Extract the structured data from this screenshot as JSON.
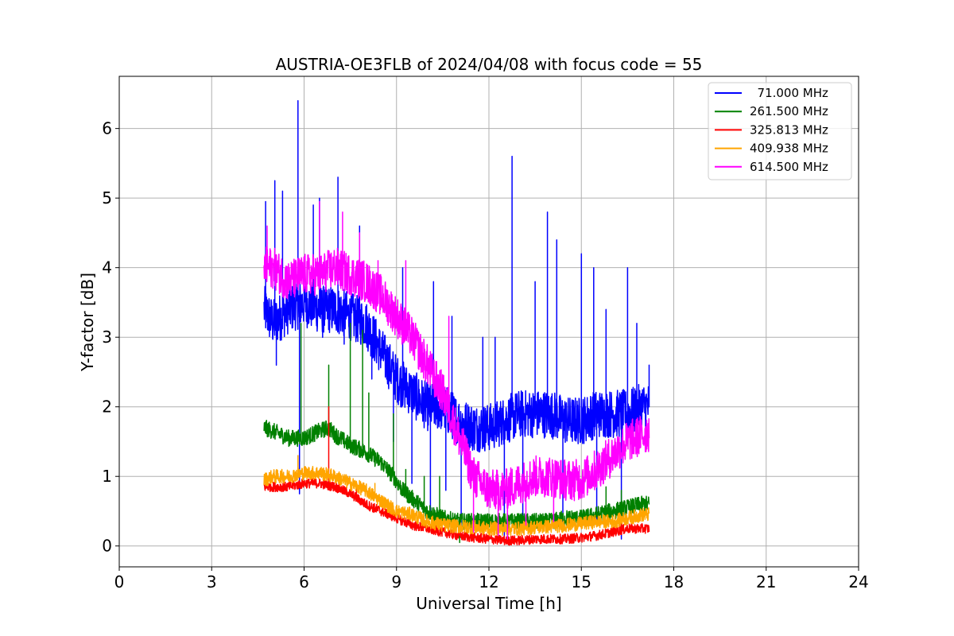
{
  "chart_data": {
    "type": "line",
    "title": "AUSTRIA-OE3FLB of 2024/04/08 with focus code = 55",
    "xlabel": "Universal Time [h]",
    "ylabel": "Y-factor [dB]",
    "xlim": [
      0,
      24
    ],
    "ylim": [
      -0.3,
      6.75
    ],
    "xticks": [
      0,
      3,
      6,
      9,
      12,
      15,
      18,
      21,
      24
    ],
    "xtick_labels": [
      "0",
      "3",
      "6",
      "9",
      "12",
      "15",
      "18",
      "21",
      "24"
    ],
    "yticks": [
      0,
      1,
      2,
      3,
      4,
      5,
      6
    ],
    "ytick_labels": [
      "0",
      "1",
      "2",
      "3",
      "4",
      "5",
      "6"
    ],
    "grid": true,
    "legend_position": "top-right",
    "series": [
      {
        "name": "  71.000 MHz",
        "color": "#0000ff",
        "x": [
          4.7,
          5.0,
          5.5,
          6.0,
          6.5,
          7.0,
          7.5,
          8.0,
          8.5,
          9.0,
          9.5,
          10.0,
          10.5,
          11.0,
          11.5,
          12.0,
          12.5,
          13.0,
          13.5,
          14.0,
          14.5,
          15.0,
          15.5,
          16.0,
          16.5,
          17.0,
          17.2
        ],
        "y": [
          3.4,
          3.2,
          3.4,
          3.5,
          3.4,
          3.4,
          3.3,
          3.2,
          2.8,
          2.4,
          2.2,
          2.0,
          2.0,
          1.8,
          1.7,
          1.7,
          1.8,
          1.9,
          1.9,
          1.9,
          1.8,
          1.8,
          1.9,
          1.9,
          1.9,
          2.0,
          2.0
        ],
        "spread": 0.35,
        "spikes": [
          [
            4.75,
            4.95
          ],
          [
            5.05,
            5.25
          ],
          [
            5.3,
            5.1
          ],
          [
            5.8,
            6.4
          ],
          [
            6.3,
            4.9
          ],
          [
            6.5,
            5.0
          ],
          [
            7.1,
            5.3
          ],
          [
            7.8,
            4.6
          ],
          [
            9.2,
            4.0
          ],
          [
            10.2,
            3.8
          ],
          [
            10.8,
            3.3
          ],
          [
            11.8,
            3.0
          ],
          [
            12.2,
            3.0
          ],
          [
            12.75,
            5.6
          ],
          [
            13.5,
            3.8
          ],
          [
            13.9,
            4.8
          ],
          [
            14.2,
            4.4
          ],
          [
            15.0,
            4.2
          ],
          [
            15.4,
            4.0
          ],
          [
            15.8,
            3.4
          ],
          [
            16.5,
            4.0
          ],
          [
            16.8,
            3.2
          ],
          [
            17.2,
            2.6
          ]
        ],
        "dips": [
          [
            5.1,
            2.6
          ],
          [
            5.85,
            0.75
          ],
          [
            6.6,
            3.0
          ],
          [
            7.3,
            2.9
          ],
          [
            8.2,
            2.4
          ],
          [
            8.9,
            1.5
          ],
          [
            9.5,
            0.9
          ],
          [
            10.1,
            0.4
          ],
          [
            10.6,
            0.8
          ],
          [
            11.1,
            0.3
          ],
          [
            12.5,
            0.05
          ],
          [
            13.1,
            0.2
          ],
          [
            14.4,
            0.3
          ],
          [
            15.5,
            0.3
          ],
          [
            16.3,
            0.1
          ]
        ]
      },
      {
        "name": "261.500 MHz",
        "color": "#008000",
        "x": [
          4.7,
          5.0,
          5.5,
          6.0,
          6.5,
          6.8,
          7.0,
          7.5,
          8.0,
          8.5,
          8.9,
          9.2,
          9.6,
          10.0,
          10.5,
          11.0,
          11.5,
          12.0,
          12.5,
          13.0,
          13.5,
          14.0,
          14.5,
          15.0,
          15.5,
          16.0,
          16.5,
          17.0,
          17.2
        ],
        "y": [
          1.7,
          1.65,
          1.55,
          1.55,
          1.65,
          1.7,
          1.6,
          1.45,
          1.35,
          1.2,
          1.0,
          0.8,
          0.65,
          0.5,
          0.4,
          0.35,
          0.35,
          0.35,
          0.35,
          0.35,
          0.35,
          0.35,
          0.4,
          0.4,
          0.45,
          0.5,
          0.55,
          0.6,
          0.6
        ],
        "spread": 0.12,
        "spikes": [
          [
            5.9,
            3.2
          ],
          [
            6.8,
            2.6
          ],
          [
            7.5,
            3.2
          ],
          [
            7.9,
            3.1
          ],
          [
            8.1,
            2.2
          ],
          [
            8.9,
            1.9
          ],
          [
            9.3,
            1.1
          ],
          [
            9.9,
            1.0
          ],
          [
            10.4,
            1.0
          ],
          [
            15.8,
            0.85
          ],
          [
            16.3,
            0.8
          ]
        ],
        "dips": [
          [
            11.05,
            0.05
          ]
        ]
      },
      {
        "name": "325.813 MHz",
        "color": "#ff0000",
        "x": [
          4.7,
          5.0,
          5.5,
          6.0,
          6.5,
          7.0,
          7.5,
          8.0,
          8.5,
          9.0,
          9.5,
          10.0,
          10.5,
          11.0,
          11.5,
          12.0,
          12.5,
          13.0,
          13.5,
          14.0,
          14.5,
          15.0,
          15.5,
          16.0,
          16.5,
          17.0,
          17.2
        ],
        "y": [
          0.85,
          0.85,
          0.85,
          0.9,
          0.9,
          0.85,
          0.75,
          0.6,
          0.5,
          0.4,
          0.3,
          0.25,
          0.2,
          0.15,
          0.12,
          0.1,
          0.08,
          0.08,
          0.1,
          0.1,
          0.1,
          0.12,
          0.15,
          0.2,
          0.25,
          0.25,
          0.25
        ],
        "spread": 0.07,
        "spikes": [
          [
            6.8,
            2.0
          ],
          [
            7.7,
            0.9
          ],
          [
            16.3,
            0.4
          ]
        ],
        "dips": []
      },
      {
        "name": "409.938 MHz",
        "color": "#ffa500",
        "x": [
          4.7,
          5.0,
          5.5,
          6.0,
          6.5,
          7.0,
          7.5,
          8.0,
          8.5,
          9.0,
          9.5,
          10.0,
          10.5,
          11.0,
          11.5,
          12.0,
          12.5,
          13.0,
          13.5,
          14.0,
          14.5,
          15.0,
          15.5,
          16.0,
          16.5,
          17.0,
          17.2
        ],
        "y": [
          0.95,
          1.0,
          1.0,
          1.05,
          1.05,
          1.0,
          0.9,
          0.8,
          0.65,
          0.5,
          0.45,
          0.35,
          0.3,
          0.28,
          0.27,
          0.25,
          0.25,
          0.25,
          0.27,
          0.28,
          0.3,
          0.32,
          0.35,
          0.35,
          0.4,
          0.45,
          0.45
        ],
        "spread": 0.1,
        "spikes": [
          [
            5.8,
            1.3
          ],
          [
            8.3,
            0.9
          ]
        ],
        "dips": []
      },
      {
        "name": "614.500 MHz",
        "color": "#ff00ff",
        "x": [
          4.7,
          5.0,
          5.5,
          6.0,
          6.5,
          7.0,
          7.5,
          8.0,
          8.5,
          9.0,
          9.5,
          10.0,
          10.5,
          11.0,
          11.5,
          12.0,
          12.5,
          13.0,
          13.5,
          14.0,
          14.5,
          15.0,
          15.5,
          16.0,
          16.5,
          17.0,
          17.2
        ],
        "y": [
          4.0,
          4.0,
          3.8,
          3.9,
          3.9,
          4.0,
          3.9,
          3.8,
          3.6,
          3.3,
          3.0,
          2.6,
          2.2,
          1.6,
          1.0,
          0.8,
          0.8,
          0.9,
          1.0,
          1.0,
          0.95,
          0.95,
          1.1,
          1.3,
          1.5,
          1.6,
          1.65
        ],
        "spread": 0.3,
        "spikes": [
          [
            4.8,
            4.6
          ],
          [
            6.5,
            4.95
          ],
          [
            7.25,
            4.8
          ],
          [
            7.8,
            4.5
          ],
          [
            8.4,
            4.1
          ],
          [
            9.3,
            4.1
          ],
          [
            10.7,
            3.3
          ]
        ],
        "dips": [
          [
            11.5,
            0.2
          ],
          [
            12.3,
            0.15
          ],
          [
            12.6,
            0.1
          ],
          [
            13.2,
            0.3
          ],
          [
            14.1,
            0.35
          ]
        ]
      }
    ]
  }
}
